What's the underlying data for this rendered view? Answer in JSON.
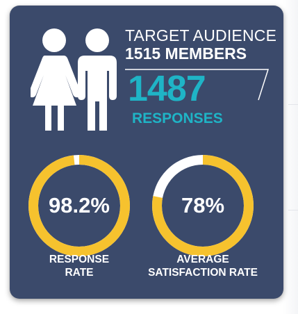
{
  "colors": {
    "background": "#3b4a6b",
    "accent_teal": "#1fb4c6",
    "gauge_fill": "#f6c22e",
    "gauge_track": "#ffffff",
    "text": "#ffffff"
  },
  "icons": {
    "people": "man-and-woman-icon"
  },
  "audience": {
    "label": "TARGET AUDIENCE",
    "count": "1515 MEMBERS"
  },
  "responses": {
    "count": "1487",
    "label": "RESPONSES"
  },
  "gauges": [
    {
      "value_text": "98.2%",
      "fraction": 0.982,
      "label_line1": "RESPONSE",
      "label_line2": "RATE"
    },
    {
      "value_text": "78%",
      "fraction": 0.78,
      "label_line1": "AVERAGE",
      "label_line2": "SATISFACTION RATE"
    }
  ]
}
